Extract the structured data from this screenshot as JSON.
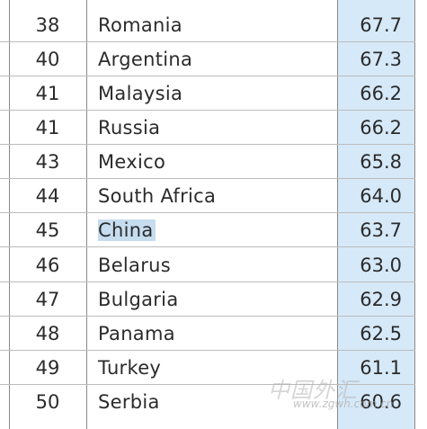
{
  "rows": [
    {
      "rank": "38",
      "country": "Romania",
      "score": "67.7"
    },
    {
      "rank": "40",
      "country": "Argentina",
      "score": "67.3"
    },
    {
      "rank": "41",
      "country": "Malaysia",
      "score": "66.2"
    },
    {
      "rank": "41",
      "country": "Russia",
      "score": "66.2"
    },
    {
      "rank": "43",
      "country": "Mexico",
      "score": "65.8"
    },
    {
      "rank": "44",
      "country": "South Africa",
      "score": "64.0"
    },
    {
      "rank": "45",
      "country": "China",
      "score": "63.7",
      "selected": true
    },
    {
      "rank": "46",
      "country": "Belarus",
      "score": "63.0"
    },
    {
      "rank": "47",
      "country": "Bulgaria",
      "score": "62.9"
    },
    {
      "rank": "48",
      "country": "Panama",
      "score": "62.5"
    },
    {
      "rank": "49",
      "country": "Turkey",
      "score": "61.1"
    },
    {
      "rank": "50",
      "country": "Serbia",
      "score": "60.6"
    }
  ],
  "watermark": {
    "title": "中国外汇",
    "url": "www.zgwh.com.cn"
  },
  "colors": {
    "score_column_bg": "#d6e9f8",
    "selection_highlight": "#c6dcef",
    "text": "#2b2b2b"
  }
}
